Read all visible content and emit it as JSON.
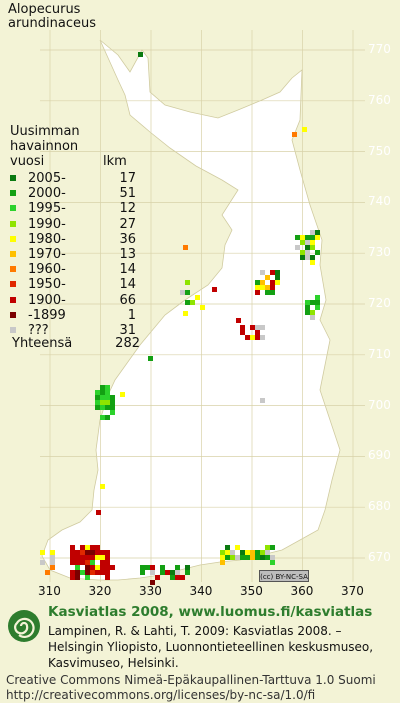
{
  "species": [
    "Alopecurus",
    "arundinaceus"
  ],
  "legend": {
    "heading": [
      "Uusimman",
      "havainnon"
    ],
    "col_year": "vuosi",
    "col_count": "lkm",
    "rows": [
      {
        "label": "2005-",
        "count": "17",
        "color": "#0a7a10"
      },
      {
        "label": "2000-",
        "count": "51",
        "color": "#13a013"
      },
      {
        "label": "1995-",
        "count": "12",
        "color": "#2cd22c"
      },
      {
        "label": "1990-",
        "count": "27",
        "color": "#8fe400"
      },
      {
        "label": "1980-",
        "count": "36",
        "color": "#ffff00"
      },
      {
        "label": "1970-",
        "count": "13",
        "color": "#ffc000"
      },
      {
        "label": "1960-",
        "count": "14",
        "color": "#ff7a00"
      },
      {
        "label": "1950-",
        "count": "14",
        "color": "#e02800"
      },
      {
        "label": "1900-",
        "count": "66",
        "color": "#c00000"
      },
      {
        "label": "-1899",
        "count": "1",
        "color": "#7a0000"
      },
      {
        "label": "???",
        "count": "31",
        "color": "#c8c8c8"
      }
    ],
    "total_label": "Yhteensä",
    "total_count": "282"
  },
  "axis": {
    "y_ticks": [
      "770",
      "760",
      "750",
      "740",
      "730",
      "720",
      "710",
      "700",
      "690",
      "680",
      "670"
    ],
    "x_ticks": [
      "310",
      "320",
      "330",
      "340",
      "350",
      "360",
      "370"
    ]
  },
  "cc_badge": "BY-NC-SA",
  "footer": {
    "title": "Kasviatlas 2008, www.luomus.fi/kasviatlas",
    "credit": [
      "Lampinen, R. & Lahti, T. 2009: Kasviatlas 2008. –",
      "Helsingin Yliopisto, Luonnontieteellinen keskusmuseo,",
      "Kasvimuseo, Helsinki."
    ],
    "license": [
      "Creative Commons Nimeä-Epäkaupallinen-Tarttuva 1.0 Suomi",
      "http://creativecommons.org/licenses/by-nc-sa/1.0/fi"
    ]
  },
  "colors": {
    "land": "#ffffff",
    "background": "#f3f3d6",
    "grid": "#d8d2a8",
    "brand_green": "#2e7d2e"
  }
}
